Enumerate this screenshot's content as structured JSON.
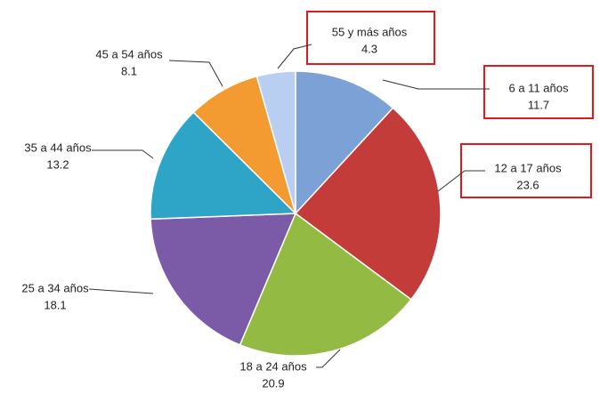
{
  "chart_data": {
    "type": "pie",
    "categories": [
      "6 a 11 años",
      "12 a 17 años",
      "18 a 24 años",
      "25 a 34 años",
      "35 a 44 años",
      "45 a 54 años",
      "55 y más años"
    ],
    "values": [
      11.7,
      23.6,
      20.9,
      18.1,
      13.2,
      8.1,
      4.3
    ],
    "colors": [
      "#7ba1d6",
      "#c43c3a",
      "#93bb44",
      "#7b5ba8",
      "#2ea4c6",
      "#f39a30",
      "#b9cff2"
    ]
  }
}
